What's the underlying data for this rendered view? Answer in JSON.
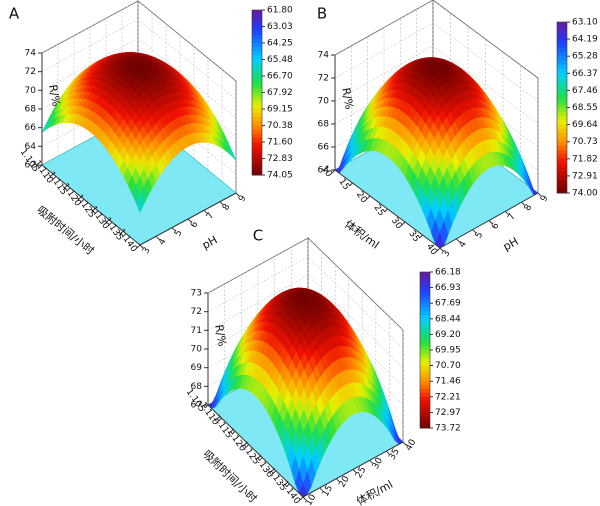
{
  "chart_data": [
    {
      "type": "surface3d",
      "panel": "A",
      "xlabel": "吸附时间/小时",
      "ylabel": "pH",
      "zlabel": "R/%",
      "xlim": [
        1.105,
        1.14
      ],
      "xticks": [
        1.105,
        {
          "value": 1.11,
          "label": "1.110"
        },
        1.115,
        {
          "value": 1.12,
          "label": "1.120"
        },
        1.125,
        {
          "value": 1.13,
          "label": "1.130"
        },
        1.135,
        {
          "value": 1.14,
          "label": "1.140"
        }
      ],
      "ylim": [
        3,
        9
      ],
      "yticks": [
        3,
        4,
        5,
        6,
        7,
        8,
        9
      ],
      "zlim": [
        62,
        74
      ],
      "zticks": [
        62,
        64,
        66,
        68,
        70,
        72,
        74
      ],
      "clim": [
        61.8,
        74.05
      ],
      "cticks": [
        {
          "value": 61.8,
          "label": "61.80"
        },
        63.03,
        64.25,
        65.48,
        {
          "value": 66.7,
          "label": "66.70"
        },
        67.92,
        69.15,
        70.38,
        {
          "value": 71.6,
          "label": "71.60"
        },
        72.83,
        74.05
      ]
    },
    {
      "type": "surface3d",
      "panel": "B",
      "xlabel": "体积/ml",
      "ylabel": "pH",
      "zlabel": "R/%",
      "xlim": [
        10,
        40
      ],
      "xticks": [
        10,
        15,
        20,
        25,
        30,
        35,
        40
      ],
      "ylim": [
        3,
        9
      ],
      "yticks": [
        3,
        4,
        5,
        6,
        7,
        8,
        9
      ],
      "zlim": [
        64,
        74
      ],
      "zticks": [
        64,
        66,
        68,
        70,
        72,
        74
      ],
      "clim": [
        63.1,
        74
      ],
      "cticks": [
        {
          "value": 63.1,
          "label": "63.10"
        },
        64.19,
        65.28,
        66.37,
        67.46,
        68.55,
        69.64,
        70.73,
        71.82,
        72.91,
        {
          "value": 74,
          "label": "74.00"
        }
      ]
    },
    {
      "type": "surface3d",
      "panel": "C",
      "xlabel": "吸附时间/小时",
      "ylabel": "体积/ml",
      "zlabel": "R/%",
      "xlim": [
        1.105,
        1.14
      ],
      "xticks": [
        1.105,
        {
          "value": 1.11,
          "label": "1.110"
        },
        1.115,
        {
          "value": 1.12,
          "label": "1.120"
        },
        1.125,
        {
          "value": 1.13,
          "label": "1.130"
        },
        1.135,
        {
          "value": 1.14,
          "label": "1.140"
        }
      ],
      "ylim": [
        10,
        40
      ],
      "yticks": [
        10,
        15,
        20,
        25,
        30,
        35,
        40
      ],
      "zlim": [
        67,
        73
      ],
      "zticks": [
        67,
        68,
        69,
        70,
        71,
        72,
        73
      ],
      "clim": [
        66.18,
        73.72
      ],
      "cticks": [
        66.18,
        66.93,
        67.69,
        68.44,
        {
          "value": 69.2,
          "label": "69.20"
        },
        69.95,
        {
          "value": 70.7,
          "label": "70.70"
        },
        71.46,
        72.21,
        72.97,
        73.72
      ]
    }
  ]
}
